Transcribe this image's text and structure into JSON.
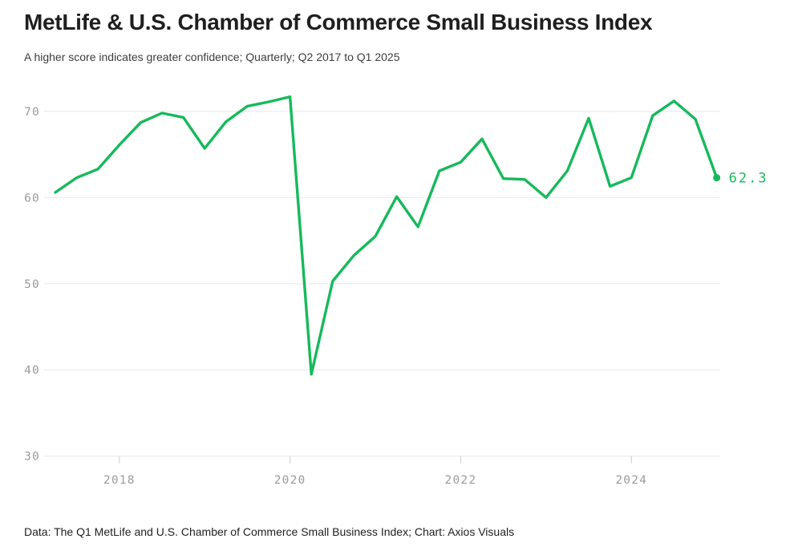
{
  "header": {
    "title": "MetLife & U.S. Chamber of Commerce Small Business Index",
    "subtitle": "A higher score indicates greater confidence; Quarterly; Q2 2017 to Q1 2025"
  },
  "footer": {
    "text": "Data: The Q1 MetLife and U.S. Chamber of Commerce Small Business Index; Chart: Axios Visuals"
  },
  "chart_data": {
    "type": "line",
    "title": "MetLife & U.S. Chamber of Commerce Small Business Index",
    "series_name": "Small Business Index score",
    "x": [
      "Q2 2017",
      "Q3 2017",
      "Q4 2017",
      "Q1 2018",
      "Q2 2018",
      "Q3 2018",
      "Q4 2018",
      "Q1 2019",
      "Q2 2019",
      "Q3 2019",
      "Q4 2019",
      "Q1 2020",
      "Q2 2020",
      "Q3 2020",
      "Q4 2020",
      "Q1 2021",
      "Q2 2021",
      "Q3 2021",
      "Q4 2021",
      "Q1 2022",
      "Q2 2022",
      "Q3 2022",
      "Q4 2022",
      "Q1 2023",
      "Q2 2023",
      "Q3 2023",
      "Q4 2023",
      "Q1 2024",
      "Q2 2024",
      "Q3 2024",
      "Q4 2024",
      "Q1 2025"
    ],
    "values": [
      60.6,
      62.3,
      63.3,
      66.1,
      68.7,
      69.8,
      69.3,
      65.7,
      68.8,
      70.6,
      71.1,
      71.7,
      39.5,
      50.3,
      53.3,
      55.5,
      60.1,
      56.6,
      63.1,
      64.1,
      66.8,
      62.2,
      62.1,
      60.0,
      63.1,
      69.2,
      61.3,
      62.3,
      69.5,
      71.2,
      69.1,
      62.3
    ],
    "ylim": [
      30,
      73.5
    ],
    "y_ticks": [
      70,
      60,
      50,
      40,
      30
    ],
    "x_ticks": [
      {
        "label": "2018",
        "index": 3
      },
      {
        "label": "2020",
        "index": 11
      },
      {
        "label": "2022",
        "index": 19
      },
      {
        "label": "2024",
        "index": 27
      }
    ],
    "end_label": "62.3",
    "grid": true,
    "legend": false,
    "colors": {
      "line": "#17b95c",
      "grid": "#e8e8e8",
      "tick": "#cccccc",
      "axis_text": "#9b9b9b"
    }
  }
}
